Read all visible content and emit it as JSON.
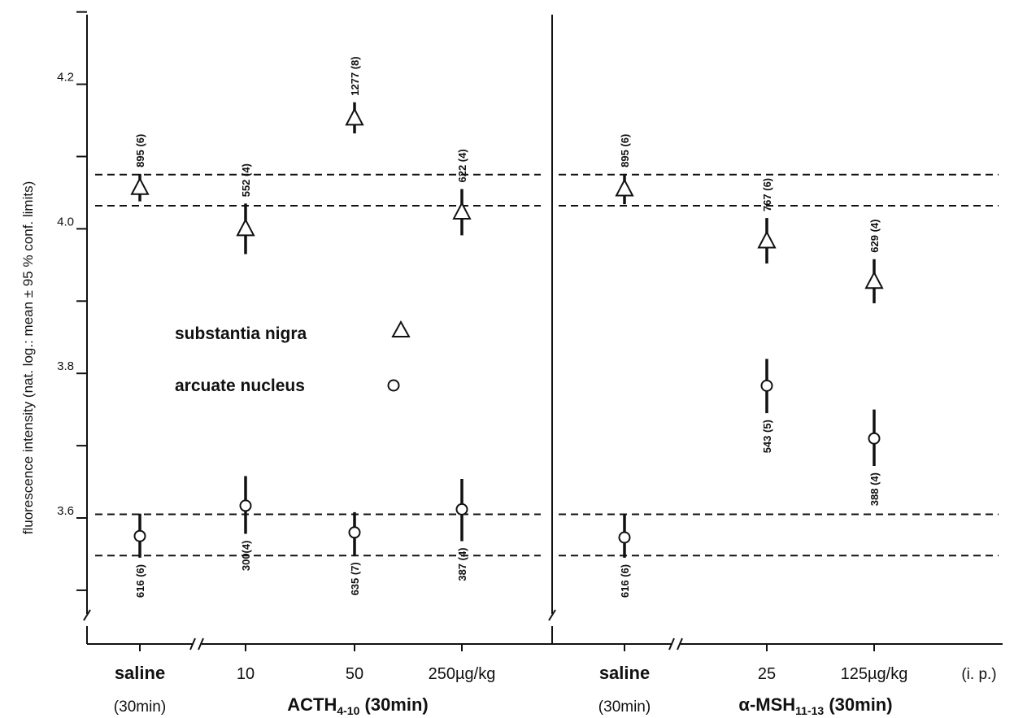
{
  "chart_data": {
    "type": "scatter",
    "ylabel": "fluorescence intensity (nat. log.: mean ± 95 % conf. limits)",
    "ytick_labels": [
      "3.6",
      "3.8",
      "4.0",
      "4.2"
    ],
    "yticks": [
      3.5,
      3.6,
      3.7,
      3.8,
      3.9,
      4.0,
      4.1,
      4.2,
      4.3
    ],
    "ylim": [
      3.46,
      4.3
    ],
    "grid": false,
    "legend": {
      "placement": "center-left of left panel",
      "entries": [
        {
          "label": "substantia nigra",
          "marker": "△"
        },
        {
          "label": "arcuate nucleus",
          "marker": "○"
        }
      ]
    },
    "panels": [
      {
        "group_label": "ACTH",
        "group_subscript": "4-10",
        "group_suffix": " (30min)",
        "categories": [
          {
            "label": "saline",
            "sublabel": "(30min)",
            "bold": true
          },
          {
            "label": "10",
            "sublabel": "",
            "bold": false
          },
          {
            "label": "50",
            "sublabel": "",
            "bold": false
          },
          {
            "label": "250µg/kg",
            "sublabel": "",
            "bold": false
          }
        ],
        "reference_lines": [
          4.075,
          4.032,
          3.605,
          3.548
        ],
        "series": [
          {
            "name": "substantia nigra",
            "marker": "triangle",
            "values": [
              4.057,
              4.0,
              4.153,
              4.023
            ],
            "ci_low": [
              4.038,
              3.965,
              4.132,
              3.991
            ],
            "ci_high": [
              4.076,
              4.035,
              4.175,
              4.055
            ],
            "labels": [
              "895 (6)",
              "552 (4)",
              "1277 (8)",
              "622 (4)"
            ],
            "label_position": [
              "above",
              "above",
              "above",
              "above"
            ]
          },
          {
            "name": "arcuate nucleus",
            "marker": "circle",
            "values": [
              3.575,
              3.617,
              3.58,
              3.612
            ],
            "ci_low": [
              3.545,
              3.578,
              3.548,
              3.568
            ],
            "ci_high": [
              3.606,
              3.658,
              3.608,
              3.654
            ],
            "labels": [
              "616 (6)",
              "300(4)",
              "635 (7)",
              "387 (4)"
            ],
            "label_position": [
              "below",
              "below",
              "below",
              "below"
            ]
          }
        ]
      },
      {
        "group_label": "α-MSH",
        "group_subscript": "11-13",
        "group_suffix": " (30min)",
        "categories": [
          {
            "label": "saline",
            "sublabel": "(30min)",
            "bold": true
          },
          {
            "label": "25",
            "sublabel": "",
            "bold": false
          },
          {
            "label": "125µg/kg",
            "sublabel": "",
            "bold": false
          }
        ],
        "extra_label": "(i. p.)",
        "reference_lines": [
          4.075,
          4.032,
          3.605,
          3.548
        ],
        "series": [
          {
            "name": "substantia nigra",
            "marker": "triangle",
            "values": [
              4.055,
              3.983,
              3.927
            ],
            "ci_low": [
              4.034,
              3.952,
              3.897
            ],
            "ci_high": [
              4.076,
              4.015,
              3.958
            ],
            "labels": [
              "895 (6)",
              "767 (6)",
              "629 (4)"
            ],
            "label_position": [
              "above",
              "above",
              "above"
            ]
          },
          {
            "name": "arcuate nucleus",
            "marker": "circle",
            "values": [
              3.573,
              3.783,
              3.71
            ],
            "ci_low": [
              3.545,
              3.745,
              3.672
            ],
            "ci_high": [
              3.606,
              3.82,
              3.75
            ],
            "labels": [
              "616 (6)",
              "543 (5)",
              "388 (4)"
            ],
            "label_position": [
              "below",
              "below",
              "below"
            ]
          }
        ]
      }
    ]
  }
}
